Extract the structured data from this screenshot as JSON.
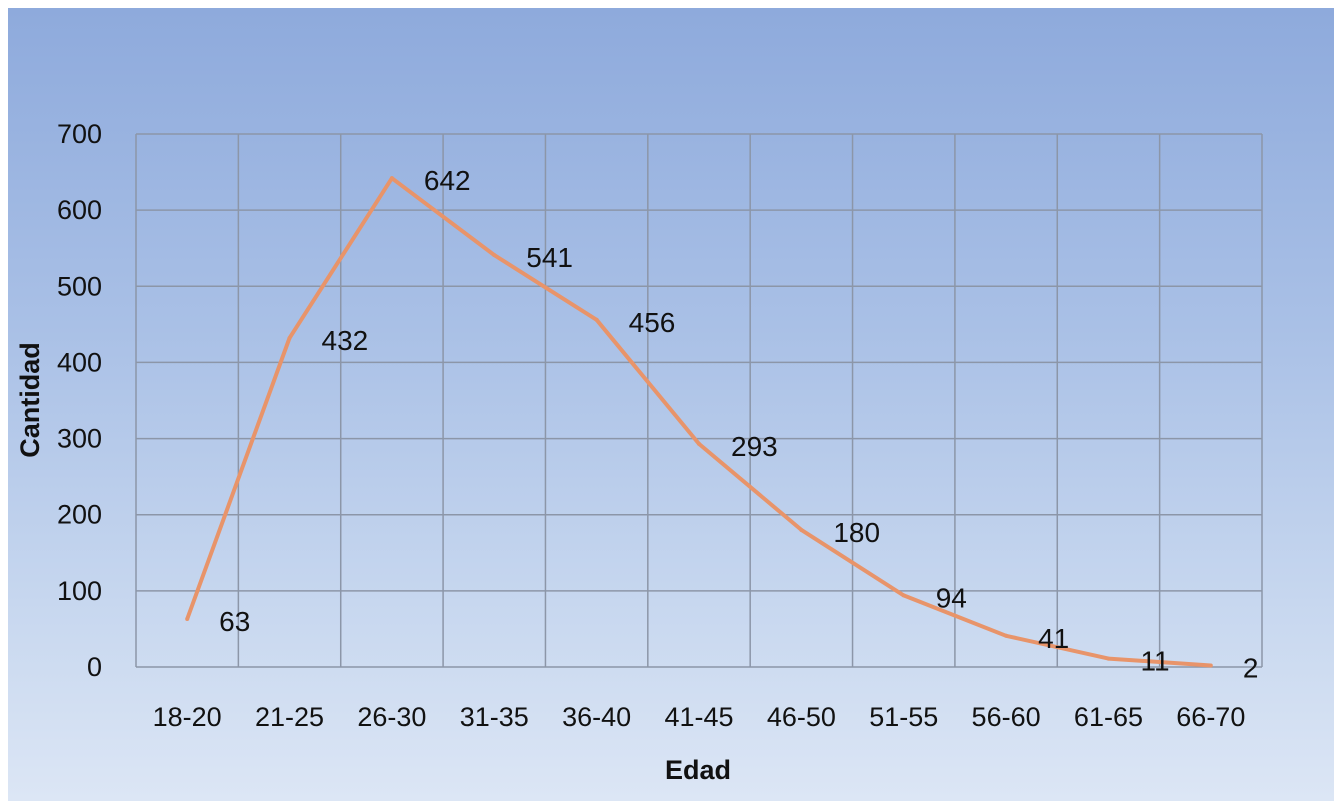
{
  "chart_data": {
    "type": "line",
    "title": "",
    "xlabel": "Edad",
    "ylabel": "Cantidad",
    "categories": [
      "18-20",
      "21-25",
      "26-30",
      "31-35",
      "36-40",
      "41-45",
      "46-50",
      "51-55",
      "56-60",
      "61-65",
      "66-70"
    ],
    "series": [
      {
        "values": [
          63,
          432,
          642,
          541,
          456,
          293,
          180,
          94,
          41,
          11,
          2
        ]
      }
    ],
    "data_labels": [
      "63",
      "432",
      "642",
      "541",
      "456",
      "293",
      "180",
      "94",
      "41",
      "11",
      "2"
    ],
    "yticks": [
      0,
      100,
      200,
      300,
      400,
      500,
      600,
      700
    ],
    "ylim": [
      0,
      700
    ],
    "grid": true,
    "legend": "none",
    "colors": {
      "line": "#e8946a",
      "grid": "#8c96a8"
    }
  }
}
